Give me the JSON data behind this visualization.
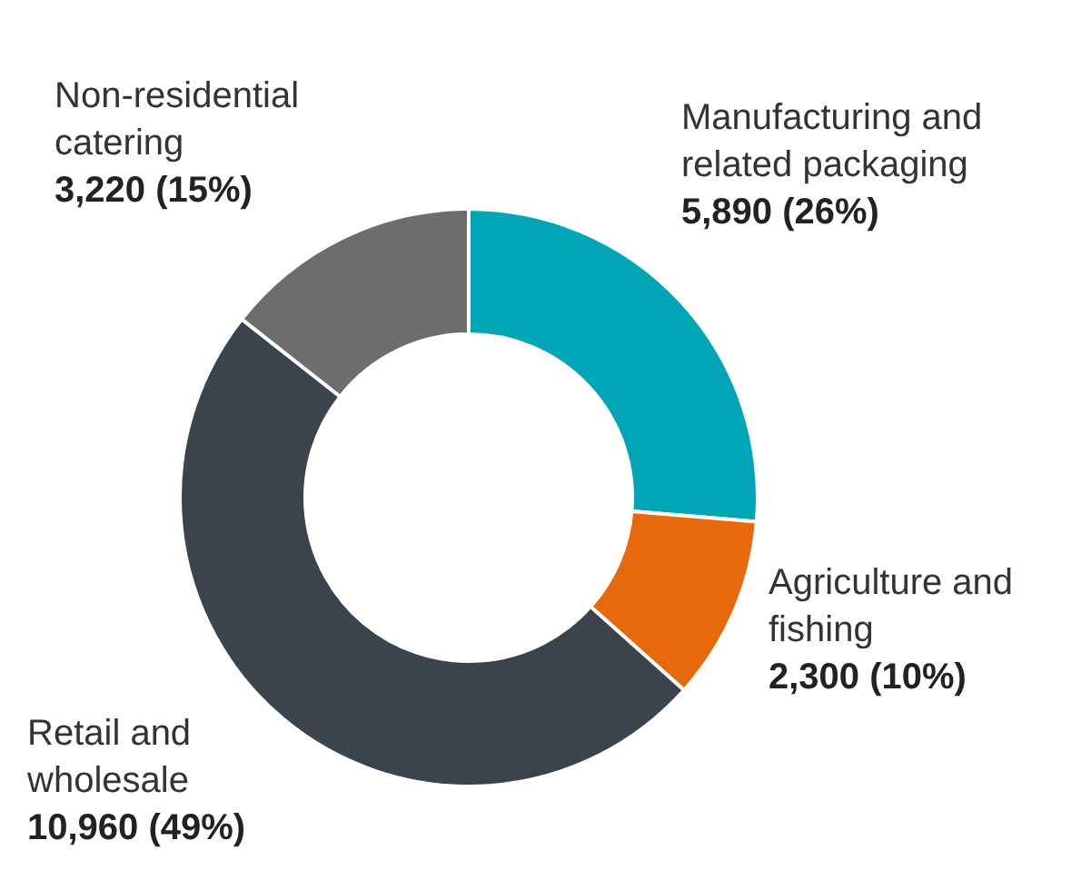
{
  "chart_data": {
    "type": "donut",
    "categories": [
      "Manufacturing and related packaging",
      "Agriculture and fishing",
      "Retail and wholesale",
      "Non-residential catering"
    ],
    "values": [
      5890,
      2300,
      10960,
      3220
    ],
    "colors": [
      "#00a6b6",
      "#e8690b",
      "#3b434c",
      "#6d6d6d"
    ],
    "value_labels": [
      "5,890 (26%)",
      "2,300 (10%)",
      "10,960 (49%)",
      "3,220 (15%)"
    ],
    "legend": false
  }
}
